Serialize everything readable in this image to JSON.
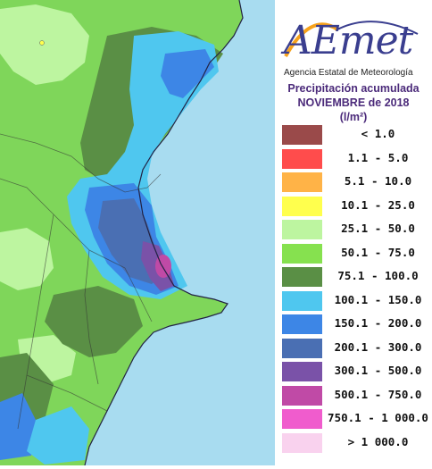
{
  "header": {
    "logo_text": "AEmet",
    "agency": "Agencia Estatal de Meteorología",
    "title_line1": "Precipitación acumulada",
    "title_line2": "NOVIEMBRE de 2018",
    "units": "(l/m²)"
  },
  "legend": [
    {
      "label": "< 1.0",
      "color": "#9a4a4a"
    },
    {
      "label": "1.1 - 5.0",
      "color": "#ff4c4c"
    },
    {
      "label": "5.1 - 10.0",
      "color": "#ffb347"
    },
    {
      "label": "10.1 - 25.0",
      "color": "#ffff4d"
    },
    {
      "label": "25.1 - 50.0",
      "color": "#bdf5a0"
    },
    {
      "label": "50.1 - 75.0",
      "color": "#86e14f"
    },
    {
      "label": "75.1 - 100.0",
      "color": "#5a8f45"
    },
    {
      "label": "100.1 - 150.0",
      "color": "#4fc7ef"
    },
    {
      "label": "150.1 - 200.0",
      "color": "#3d86e6"
    },
    {
      "label": "200.1 - 300.0",
      "color": "#4a6fb3"
    },
    {
      "label": "300.1 - 500.0",
      "color": "#7a52a8"
    },
    {
      "label": "500.1 - 750.0",
      "color": "#c04aa6"
    },
    {
      "label": "750.1 - 1 000.0",
      "color": "#f05ccd"
    },
    {
      "label": "> 1 000.0",
      "color": "#f9d2ee"
    }
  ],
  "map": {
    "sea_color": "#a8dcf0",
    "land_base": "#7fd65a",
    "zones": [
      "light-green",
      "dark-green",
      "cyan",
      "blue",
      "navy",
      "purple",
      "magenta"
    ]
  }
}
